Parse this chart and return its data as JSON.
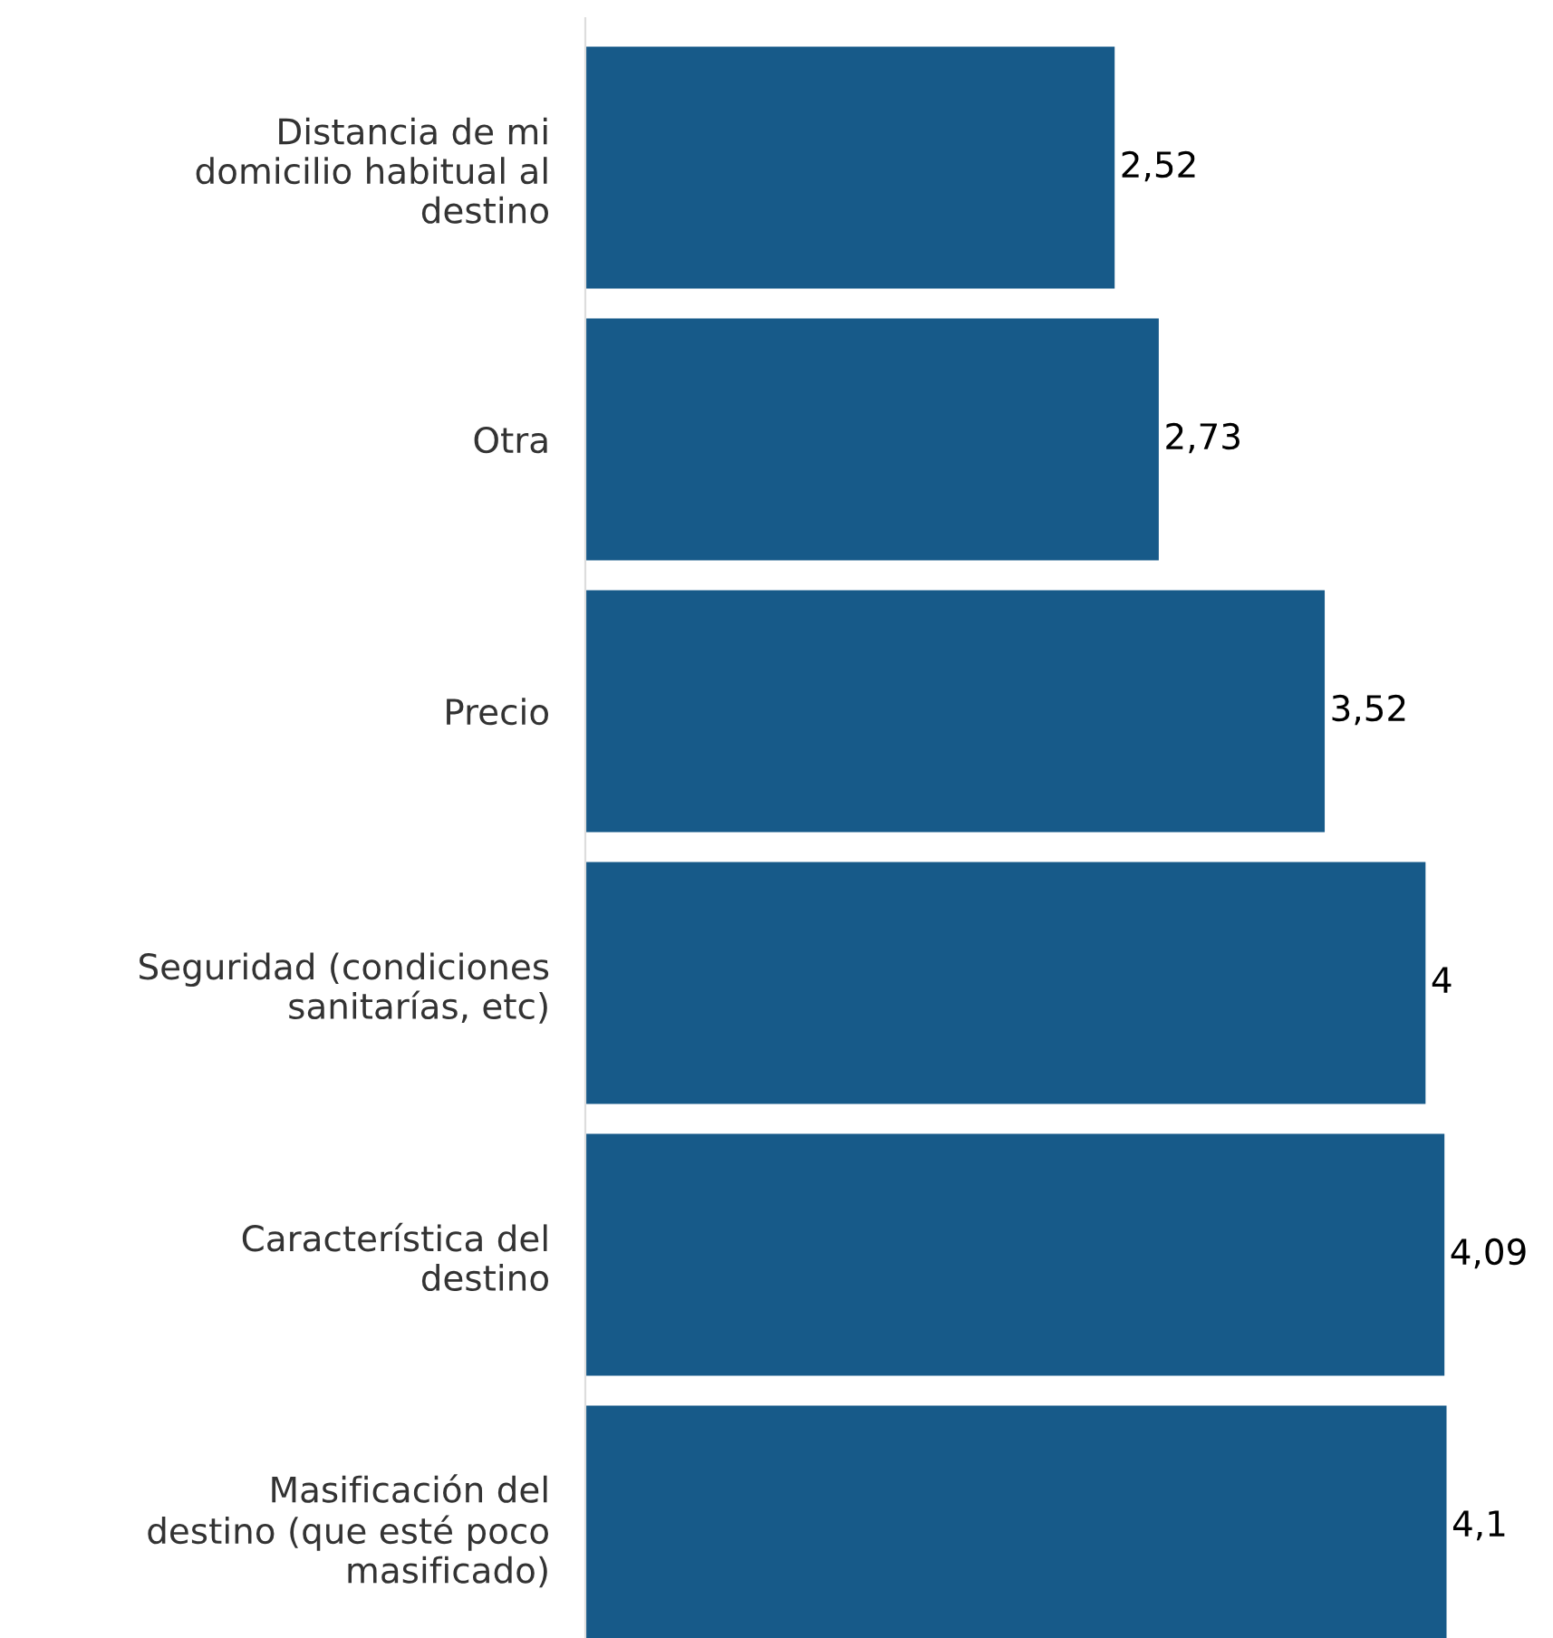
{
  "chart_data": {
    "type": "bar",
    "orientation": "horizontal",
    "categories": [
      "Distancia de mi\ndomicilio habitual al\ndestino",
      "Otra",
      "Precio",
      "Seguridad (condiciones\nsanitarías, etc)",
      "Característica del\ndestino",
      "Masificación del\ndestino (que esté poco\nmasificado)"
    ],
    "values": [
      2.52,
      2.73,
      3.52,
      4,
      4.09,
      4.1
    ],
    "value_labels": [
      "2,52",
      "2,73",
      "3,52",
      "4",
      "4,09",
      "4,1"
    ],
    "color": "#175a89",
    "tick_labels": "y",
    "grid": false,
    "legend": false
  }
}
